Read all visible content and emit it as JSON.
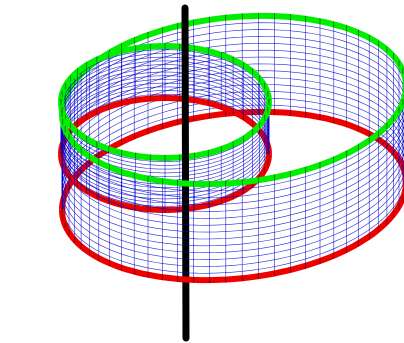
{
  "figure": {
    "kind": "3d-wireframe-bands",
    "bands": [
      {
        "name": "outer-band",
        "top_edge_color": "#00ee00",
        "bottom_edge_color": "#ee0000",
        "mesh_color": "#0000cc"
      },
      {
        "name": "inner-band",
        "top_edge_color": "#00ee00",
        "bottom_edge_color": "#ee0000",
        "mesh_color": "#0000cc"
      }
    ],
    "axis": {
      "name": "vertical-axis",
      "color": "#000000"
    }
  }
}
